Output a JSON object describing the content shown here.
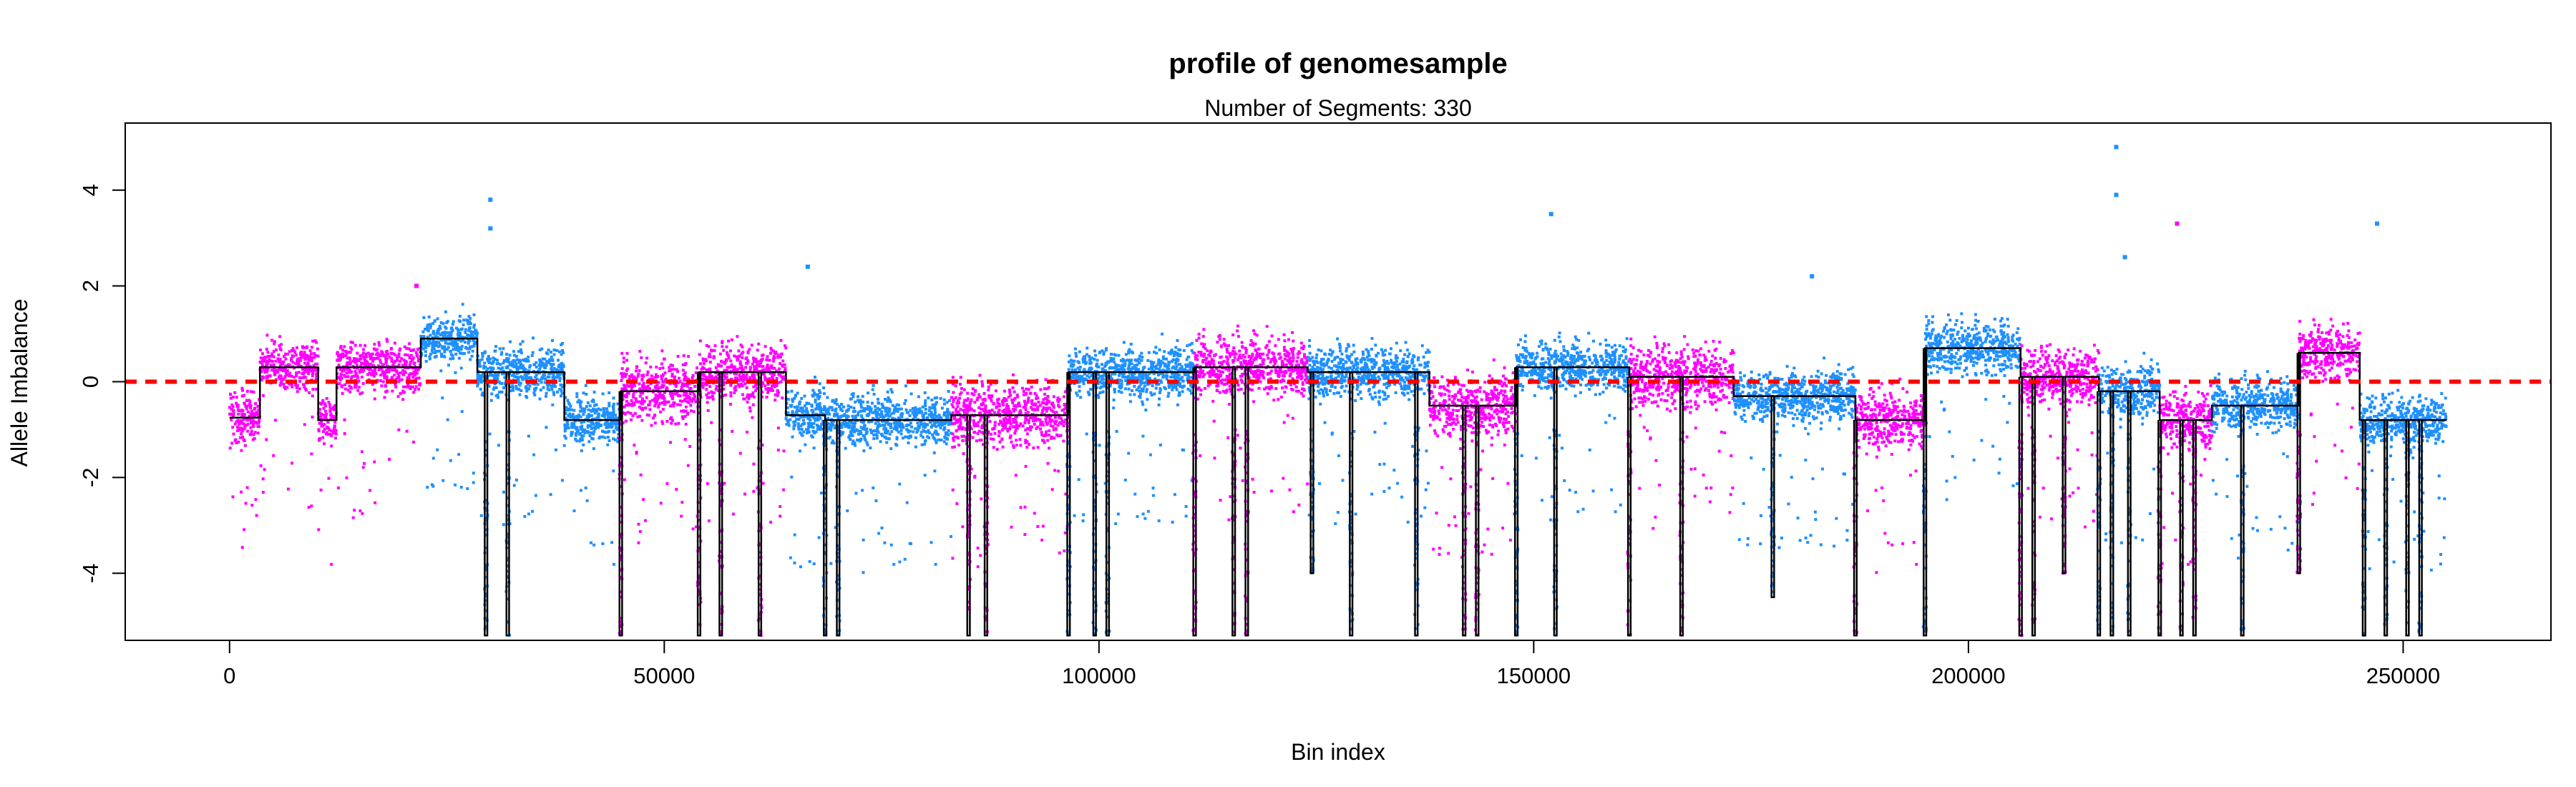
{
  "chart_data": {
    "type": "scatter",
    "title": "profile of genomesample",
    "subtitle": "Number of Segments: 330",
    "xlabel": "Bin index",
    "ylabel": "Allele Imbalance",
    "xlim": [
      -12000,
      267000
    ],
    "ylim": [
      -5.4,
      5.4
    ],
    "x_ticks": [
      0,
      50000,
      100000,
      150000,
      200000,
      250000
    ],
    "y_ticks": [
      -4,
      -2,
      0,
      2,
      4
    ],
    "x_tick_labels": [
      "0",
      "50000",
      "100000",
      "150000",
      "200000",
      "250000"
    ],
    "y_tick_labels": [
      "-4",
      "-2",
      "0",
      "2",
      "4"
    ],
    "grid": false,
    "legend": "none",
    "reference_line": {
      "y": 0,
      "style": "dashed",
      "color": "#ff0000"
    },
    "series_colors": {
      "odd_chromosome": "#ff00ff",
      "even_chromosome": "#1e90ff",
      "segments": "#000000"
    },
    "regions": [
      {
        "start": 0,
        "end": 3500,
        "color": "magenta",
        "level": -0.75,
        "spread": 0.5
      },
      {
        "start": 3500,
        "end": 10200,
        "color": "magenta",
        "level": 0.3,
        "spread": 0.5
      },
      {
        "start": 10200,
        "end": 12300,
        "color": "magenta",
        "level": -0.8,
        "spread": 0.5
      },
      {
        "start": 12300,
        "end": 22000,
        "color": "magenta",
        "level": 0.3,
        "spread": 0.5
      },
      {
        "start": 22000,
        "end": 28500,
        "color": "blue",
        "level": 0.9,
        "spread": 0.45
      },
      {
        "start": 28500,
        "end": 38500,
        "color": "blue",
        "level": 0.2,
        "spread": 0.5
      },
      {
        "start": 38500,
        "end": 45000,
        "color": "blue",
        "level": -0.8,
        "spread": 0.5
      },
      {
        "start": 45000,
        "end": 54000,
        "color": "magenta",
        "level": -0.2,
        "spread": 0.6
      },
      {
        "start": 54000,
        "end": 64000,
        "color": "magenta",
        "level": 0.2,
        "spread": 0.6
      },
      {
        "start": 64000,
        "end": 68500,
        "color": "blue",
        "level": -0.7,
        "spread": 0.5
      },
      {
        "start": 68500,
        "end": 83000,
        "color": "blue",
        "level": -0.8,
        "spread": 0.5
      },
      {
        "start": 83000,
        "end": 96500,
        "color": "magenta",
        "level": -0.7,
        "spread": 0.6
      },
      {
        "start": 96500,
        "end": 111000,
        "color": "blue",
        "level": 0.2,
        "spread": 0.5
      },
      {
        "start": 111000,
        "end": 124000,
        "color": "magenta",
        "level": 0.3,
        "spread": 0.6
      },
      {
        "start": 124000,
        "end": 138000,
        "color": "blue",
        "level": 0.2,
        "spread": 0.5
      },
      {
        "start": 138000,
        "end": 148000,
        "color": "magenta",
        "level": -0.5,
        "spread": 0.6
      },
      {
        "start": 148000,
        "end": 161000,
        "color": "blue",
        "level": 0.3,
        "spread": 0.5
      },
      {
        "start": 161000,
        "end": 173000,
        "color": "magenta",
        "level": 0.1,
        "spread": 0.6
      },
      {
        "start": 173000,
        "end": 187000,
        "color": "blue",
        "level": -0.3,
        "spread": 0.5
      },
      {
        "start": 187000,
        "end": 195000,
        "color": "magenta",
        "level": -0.8,
        "spread": 0.6
      },
      {
        "start": 195000,
        "end": 206000,
        "color": "blue",
        "level": 0.7,
        "spread": 0.5
      },
      {
        "start": 206000,
        "end": 215000,
        "color": "magenta",
        "level": 0.1,
        "spread": 0.6
      },
      {
        "start": 215000,
        "end": 222000,
        "color": "blue",
        "level": -0.2,
        "spread": 0.5
      },
      {
        "start": 222000,
        "end": 228000,
        "color": "magenta",
        "level": -0.8,
        "spread": 0.6
      },
      {
        "start": 228000,
        "end": 238000,
        "color": "blue",
        "level": -0.5,
        "spread": 0.5
      },
      {
        "start": 238000,
        "end": 245000,
        "color": "magenta",
        "level": 0.6,
        "spread": 0.5
      },
      {
        "start": 245000,
        "end": 255000,
        "color": "blue",
        "level": -0.8,
        "spread": 0.5
      }
    ],
    "outliers": [
      {
        "x": 30000,
        "y": 3.8
      },
      {
        "x": 30000,
        "y": 3.2
      },
      {
        "x": 152000,
        "y": 3.5
      },
      {
        "x": 217000,
        "y": 4.9
      },
      {
        "x": 217000,
        "y": 3.9
      },
      {
        "x": 224000,
        "y": 3.3
      },
      {
        "x": 247000,
        "y": 3.3
      },
      {
        "x": 66500,
        "y": 2.4
      },
      {
        "x": 218000,
        "y": 2.6
      },
      {
        "x": 182000,
        "y": 2.2
      },
      {
        "x": 21500,
        "y": 2.0
      }
    ],
    "dips": [
      {
        "x": 29500,
        "depth": -5.3
      },
      {
        "x": 32000,
        "depth": -5.3
      },
      {
        "x": 45000,
        "depth": -5.3
      },
      {
        "x": 54000,
        "depth": -5.3
      },
      {
        "x": 56500,
        "depth": -5.3
      },
      {
        "x": 61000,
        "depth": -5.3
      },
      {
        "x": 68500,
        "depth": -5.3
      },
      {
        "x": 70000,
        "depth": -5.3
      },
      {
        "x": 85000,
        "depth": -5.3
      },
      {
        "x": 87000,
        "depth": -5.3
      },
      {
        "x": 96500,
        "depth": -5.3
      },
      {
        "x": 99500,
        "depth": -5.3
      },
      {
        "x": 101000,
        "depth": -5.3
      },
      {
        "x": 111000,
        "depth": -5.3
      },
      {
        "x": 115500,
        "depth": -5.3
      },
      {
        "x": 117000,
        "depth": -5.3
      },
      {
        "x": 124500,
        "depth": -4.0
      },
      {
        "x": 129000,
        "depth": -5.3
      },
      {
        "x": 136500,
        "depth": -5.3
      },
      {
        "x": 142000,
        "depth": -5.3
      },
      {
        "x": 143500,
        "depth": -5.3
      },
      {
        "x": 148000,
        "depth": -5.3
      },
      {
        "x": 152500,
        "depth": -5.3
      },
      {
        "x": 161000,
        "depth": -5.3
      },
      {
        "x": 167000,
        "depth": -5.3
      },
      {
        "x": 177500,
        "depth": -4.5
      },
      {
        "x": 187000,
        "depth": -5.3
      },
      {
        "x": 195000,
        "depth": -5.3
      },
      {
        "x": 206000,
        "depth": -5.3
      },
      {
        "x": 207500,
        "depth": -5.3
      },
      {
        "x": 211000,
        "depth": -4.0
      },
      {
        "x": 215000,
        "depth": -5.3
      },
      {
        "x": 216500,
        "depth": -5.3
      },
      {
        "x": 218500,
        "depth": -5.3
      },
      {
        "x": 222000,
        "depth": -5.3
      },
      {
        "x": 224500,
        "depth": -5.3
      },
      {
        "x": 226000,
        "depth": -5.3
      },
      {
        "x": 231500,
        "depth": -5.3
      },
      {
        "x": 238000,
        "depth": -4.0
      },
      {
        "x": 245500,
        "depth": -5.3
      },
      {
        "x": 248000,
        "depth": -5.3
      },
      {
        "x": 250500,
        "depth": -5.3
      },
      {
        "x": 252000,
        "depth": -5.3
      }
    ]
  }
}
